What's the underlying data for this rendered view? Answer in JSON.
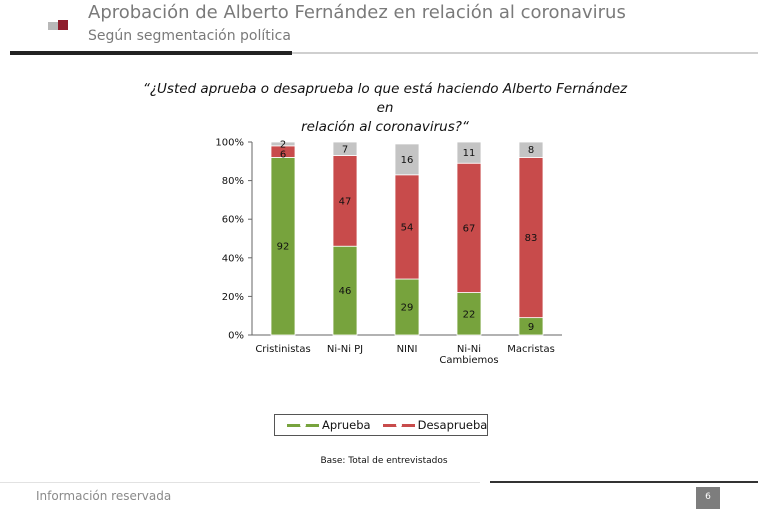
{
  "header": {
    "title": "Aprobación de Alberto Fernández en relación al coronavirus",
    "subtitle": "Según segmentación política"
  },
  "question": {
    "line1": "“¿Usted aprueba o desaprueba lo que está haciendo Alberto Fernández en",
    "line2": "relación al coronavirus?“"
  },
  "chart_data": {
    "type": "bar",
    "stacked": true,
    "percent": true,
    "categories": [
      "Cristinistas",
      "Ni-Ni PJ",
      "NINI",
      "Ni-Ni|Cambiemos",
      "Macristas"
    ],
    "series": [
      {
        "name": "Aprueba",
        "color": "#77a33d",
        "values": [
          92,
          46,
          29,
          22,
          9
        ]
      },
      {
        "name": "Desaprueba",
        "color": "#c84b4b",
        "values": [
          6,
          47,
          54,
          67,
          83
        ]
      },
      {
        "name": "",
        "color": "#c4c4c4",
        "values": [
          2,
          7,
          16,
          11,
          8
        ]
      }
    ],
    "yticks": [
      "0%",
      "20%",
      "40%",
      "60%",
      "80%",
      "100%"
    ],
    "ylim": [
      0,
      100
    ],
    "legend": "bottom"
  },
  "legend": {
    "aprueba": "Aprueba",
    "desaprueba": "Desaprueba"
  },
  "base_note": "Base: Total de entrevistados",
  "footer": {
    "text": "Información reservada",
    "page": "6"
  }
}
